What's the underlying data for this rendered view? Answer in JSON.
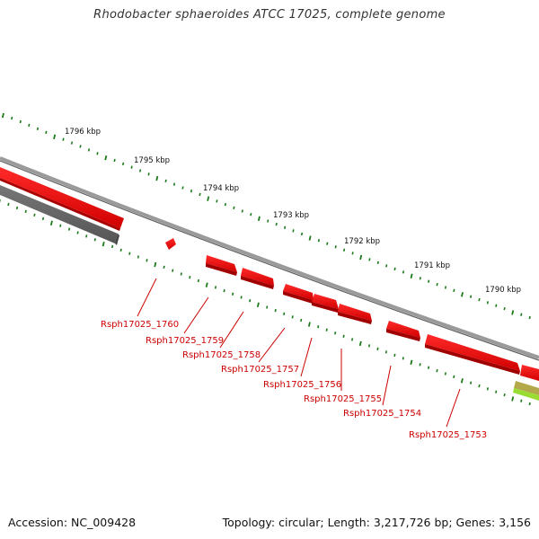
{
  "title": "Rhodobacter sphaeroides ATCC 17025, complete genome",
  "footer": {
    "accession": "Accession: NC_009428",
    "info": "Topology: circular; Length: 3,217,726 bp; Genes: 3,156"
  },
  "ticks": [
    "1796 kbp",
    "1795 kbp",
    "1794 kbp",
    "1793 kbp",
    "1792 kbp",
    "1791 kbp",
    "1790 kbp"
  ],
  "genes": [
    "Rsph17025_1760",
    "Rsph17025_1759",
    "Rsph17025_1758",
    "Rsph17025_1757",
    "Rsph17025_1756",
    "Rsph17025_1755",
    "Rsph17025_1754",
    "Rsph17025_1753"
  ],
  "colors": {
    "gene": "#ff0000",
    "gene_dark": "#b80000",
    "backbone": "#8a8a8a",
    "tick": "#1a7a1a",
    "label": "#cc0000",
    "other_feature": "#666666",
    "highlight_feature": "#99dd33"
  }
}
